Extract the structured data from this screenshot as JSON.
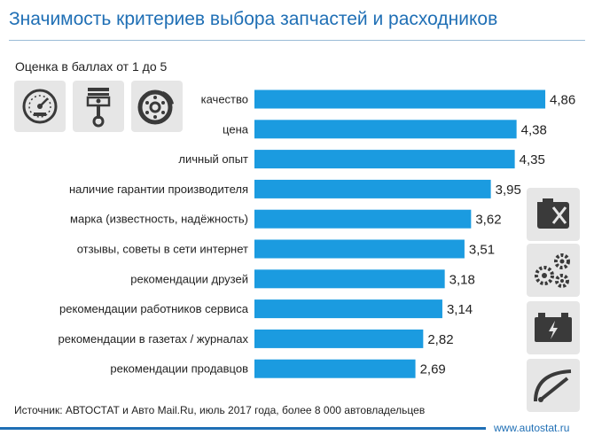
{
  "header": {
    "title": "Значимость критериев выбора запчастей и расходников",
    "subtitle": "Оценка в баллах от 1 до 5"
  },
  "colors": {
    "bar": "#1b9be0",
    "title": "#1f6fb5",
    "tile": "#e6e6e6",
    "icon": "#3a3a3a"
  },
  "icons": {
    "top": [
      "speedometer-icon",
      "piston-icon",
      "brake-disc-icon"
    ],
    "right": [
      "canister-icon",
      "gears-icon",
      "battery-icon",
      "wiper-icon"
    ]
  },
  "chart_data": {
    "type": "bar",
    "orientation": "horizontal",
    "title": "Значимость критериев выбора запчастей и расходников",
    "subtitle": "Оценка в баллах от 1 до 5",
    "categories": [
      "качество",
      "цена",
      "личный опыт",
      "наличие гарантии производителя",
      "марка (известность, надёжность)",
      "отзывы, советы в сети интернет",
      "рекомендации друзей",
      "рекомендации работников сервиса",
      "рекомендации в газетах / журналах",
      "рекомендации продавцов"
    ],
    "values": [
      4.86,
      4.38,
      4.35,
      3.95,
      3.62,
      3.51,
      3.18,
      3.14,
      2.82,
      2.69
    ],
    "value_labels": [
      "4,86",
      "4,38",
      "4,35",
      "3,95",
      "3,62",
      "3,51",
      "3,18",
      "3,14",
      "2,82",
      "2,69"
    ],
    "xlim": [
      0,
      5
    ],
    "grid": false,
    "legend": "none"
  },
  "footer": {
    "source": "Источник: АВТОСТАТ и Авто Mail.Ru, июль 2017 года, более 8 000 автовладельцев",
    "site": "www.autostat.ru"
  }
}
